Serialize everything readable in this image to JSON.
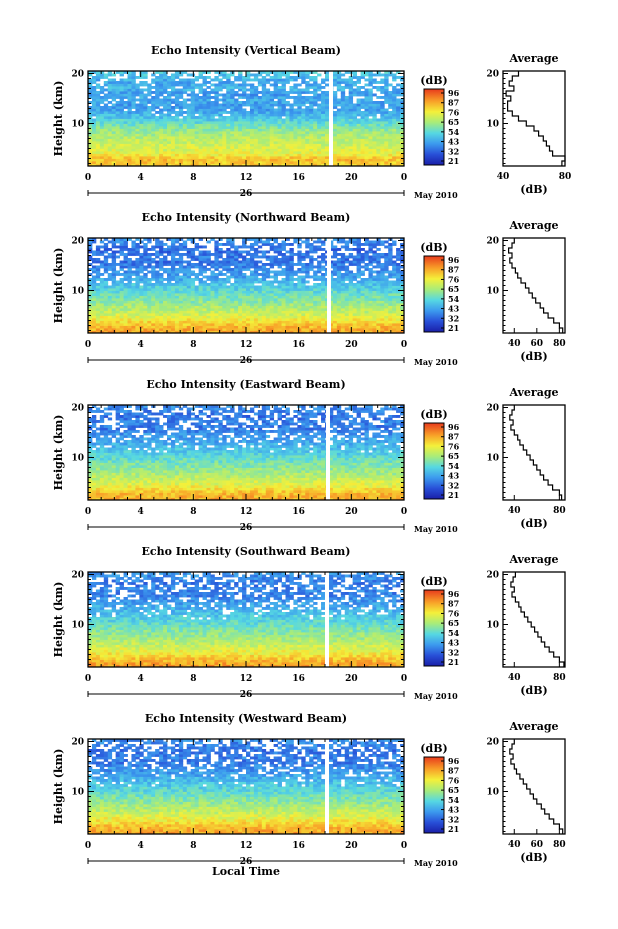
{
  "chart_data": [
    {
      "type": "heatmap",
      "title": "Echo Intensity (Vertical Beam)",
      "ylabel": "Height (km)",
      "x_ticks": [
        "0",
        "4",
        "8",
        "12",
        "16",
        "20",
        "0"
      ],
      "y_ticks": [
        "10",
        "20"
      ],
      "xlim": [
        0,
        24
      ],
      "ylim": [
        1.5,
        20.5
      ],
      "date_day": "26",
      "date_month_year": "May 2010",
      "colorbar": {
        "label": "(dB)",
        "ticks": [
          "96",
          "87",
          "76",
          "65",
          "54",
          "43",
          "32",
          "21"
        ]
      },
      "profile": {
        "title": "Average",
        "xlabel": "(dB)",
        "x_ticks": [
          "40",
          "80"
        ],
        "xlim": [
          40,
          80
        ],
        "y_ticks": [
          "10",
          "20"
        ],
        "heights": [
          2,
          3,
          4,
          5,
          6,
          7,
          8,
          9,
          10,
          11,
          12,
          13,
          14,
          15,
          16,
          17,
          18,
          19,
          20
        ],
        "values": [
          78,
          80,
          72,
          70,
          68,
          66,
          63,
          60,
          55,
          50,
          46,
          43,
          43,
          45,
          42,
          47,
          44,
          46,
          50
        ]
      }
    },
    {
      "type": "heatmap",
      "title": "Echo Intensity (Northward Beam)",
      "ylabel": "Height (km)",
      "x_ticks": [
        "0",
        "4",
        "8",
        "12",
        "16",
        "20",
        "0"
      ],
      "y_ticks": [
        "10",
        "20"
      ],
      "xlim": [
        0,
        24
      ],
      "ylim": [
        1.5,
        20.5
      ],
      "date_day": "26",
      "date_month_year": "May 2010",
      "colorbar": {
        "label": "(dB)",
        "ticks": [
          "96",
          "87",
          "76",
          "65",
          "54",
          "43",
          "32",
          "21"
        ]
      },
      "profile": {
        "title": "Average",
        "xlabel": "(dB)",
        "x_ticks": [
          "40",
          "60",
          "80"
        ],
        "xlim": [
          30,
          85
        ],
        "y_ticks": [
          "10",
          "20"
        ],
        "heights": [
          2,
          3,
          4,
          5,
          6,
          7,
          8,
          9,
          10,
          11,
          12,
          13,
          14,
          15,
          16,
          17,
          18,
          19,
          20
        ],
        "values": [
          83,
          80,
          75,
          70,
          66,
          63,
          59,
          56,
          53,
          50,
          46,
          43,
          41,
          38,
          36,
          38,
          35,
          38,
          40
        ]
      }
    },
    {
      "type": "heatmap",
      "title": "Echo Intensity (Eastward Beam)",
      "ylabel": "Height (km)",
      "x_ticks": [
        "0",
        "4",
        "8",
        "12",
        "16",
        "20",
        "0"
      ],
      "y_ticks": [
        "10",
        "20"
      ],
      "xlim": [
        0,
        24
      ],
      "ylim": [
        1.5,
        20.5
      ],
      "date_day": "26",
      "date_month_year": "May 2010",
      "colorbar": {
        "label": "(dB)",
        "ticks": [
          "96",
          "87",
          "76",
          "65",
          "54",
          "43",
          "32",
          "21"
        ]
      },
      "profile": {
        "title": "Average",
        "xlabel": "(dB)",
        "x_ticks": [
          "40",
          "80"
        ],
        "xlim": [
          30,
          85
        ],
        "y_ticks": [
          "10",
          "20"
        ],
        "heights": [
          2,
          3,
          4,
          5,
          6,
          7,
          8,
          9,
          10,
          11,
          12,
          13,
          14,
          15,
          16,
          17,
          18,
          19,
          20
        ],
        "values": [
          82,
          80,
          74,
          70,
          66,
          63,
          60,
          57,
          54,
          51,
          48,
          45,
          43,
          40,
          37,
          39,
          36,
          38,
          40
        ]
      }
    },
    {
      "type": "heatmap",
      "title": "Echo Intensity (Southward Beam)",
      "ylabel": "Height (km)",
      "x_ticks": [
        "0",
        "4",
        "8",
        "12",
        "16",
        "20",
        "0"
      ],
      "y_ticks": [
        "10",
        "20"
      ],
      "xlim": [
        0,
        24
      ],
      "ylim": [
        1.5,
        20.5
      ],
      "date_day": "26",
      "date_month_year": "May 2010",
      "colorbar": {
        "label": "(dB)",
        "ticks": [
          "96",
          "87",
          "76",
          "65",
          "54",
          "43",
          "32",
          "21"
        ]
      },
      "profile": {
        "title": "Average",
        "xlabel": "(dB)",
        "x_ticks": [
          "40",
          "80"
        ],
        "xlim": [
          30,
          85
        ],
        "y_ticks": [
          "10",
          "20"
        ],
        "heights": [
          2,
          3,
          4,
          5,
          6,
          7,
          8,
          9,
          10,
          11,
          12,
          13,
          14,
          15,
          16,
          17,
          18,
          19,
          20
        ],
        "values": [
          84,
          80,
          75,
          71,
          67,
          64,
          61,
          58,
          55,
          52,
          49,
          46,
          44,
          41,
          38,
          40,
          37,
          39,
          41
        ]
      }
    },
    {
      "type": "heatmap",
      "title": "Echo Intensity (Westward Beam)",
      "ylabel": "Height (km)",
      "x_ticks": [
        "0",
        "4",
        "8",
        "12",
        "16",
        "20",
        "0"
      ],
      "y_ticks": [
        "10",
        "20"
      ],
      "xlim": [
        0,
        24
      ],
      "ylim": [
        1.5,
        20.5
      ],
      "date_day": "26",
      "date_month_year": "May 2010",
      "xlabel": "Local Time",
      "colorbar": {
        "label": "(dB)",
        "ticks": [
          "96",
          "87",
          "76",
          "65",
          "54",
          "43",
          "32",
          "21"
        ]
      },
      "profile": {
        "title": "Average",
        "xlabel": "(dB)",
        "x_ticks": [
          "40",
          "60",
          "80"
        ],
        "xlim": [
          30,
          85
        ],
        "y_ticks": [
          "10",
          "20"
        ],
        "heights": [
          2,
          3,
          4,
          5,
          6,
          7,
          8,
          9,
          10,
          11,
          12,
          13,
          14,
          15,
          16,
          17,
          18,
          19,
          20
        ],
        "values": [
          83,
          80,
          75,
          71,
          67,
          64,
          60,
          57,
          54,
          51,
          48,
          45,
          42,
          40,
          37,
          39,
          36,
          38,
          40
        ]
      }
    }
  ]
}
